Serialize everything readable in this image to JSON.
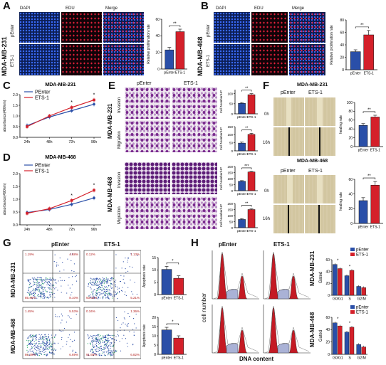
{
  "panels": {
    "A": {
      "letter": "A",
      "cell_line": "MDA-MB-231",
      "cols": [
        "DAPI",
        "EDU",
        "Merge"
      ],
      "rows": [
        "pEnter",
        "ETS-1"
      ],
      "sig": "**"
    },
    "B": {
      "letter": "B",
      "cell_line": "MDA-MB-468",
      "cols": [
        "DAPI",
        "EDU",
        "Merge"
      ],
      "rows": [
        "pEnter",
        "ETS-1"
      ],
      "sig": "**"
    },
    "C": {
      "letter": "C",
      "title": "MDA-MB-231",
      "legend": [
        "PEnter",
        "ETS-1"
      ]
    },
    "D": {
      "letter": "D",
      "title": "MDA-MB-468",
      "legend": [
        "PEnter",
        "ETS-1"
      ]
    },
    "E": {
      "letter": "E",
      "cols": [
        "pEnter",
        "ETS-1"
      ],
      "lines": [
        "MDA-MB-231",
        "MDA-MB-468"
      ],
      "rows": [
        "Invasion",
        "Migration"
      ]
    },
    "F": {
      "letter": "F",
      "titles": [
        "MDA-MB-231",
        "MDA-MB-468"
      ],
      "cols": [
        "pEnter",
        "ETS-1"
      ],
      "rows": [
        "0h",
        "16h"
      ]
    },
    "G": {
      "letter": "G",
      "cols": [
        "pEnter",
        "ETS-1"
      ],
      "lines": [
        "MDA-MB-231",
        "MDA-MB-468"
      ],
      "quad_values": [
        [
          "1.19%",
          "4.88%",
          "85.40%",
          "8.10%"
        ],
        [
          "0.12%",
          "1.13%",
          "93.53%",
          "5.21%"
        ],
        [
          "1.45%",
          "5.53%",
          "86.29%",
          "6.69%"
        ],
        [
          "0.34%",
          "1.36%",
          "91.68%",
          "6.82%"
        ]
      ]
    },
    "H": {
      "letter": "H",
      "cols": [
        "pEnter",
        "ETS-1"
      ],
      "lines": [
        "MDA-MB-231",
        "MDA-MB-468"
      ],
      "ylabel": "cell number",
      "xlabel": "DNA content"
    }
  },
  "colors": {
    "pEnter": "#2a4fa8",
    "ETS1": "#d4202a"
  },
  "chart_data": [
    {
      "id": "A-bar",
      "type": "bar",
      "categories": [
        "pEnter",
        "ETS-1"
      ],
      "values": [
        23,
        45
      ],
      "errors": [
        3,
        3
      ],
      "ylabel": "Relative proliferation rate",
      "ylim": [
        0,
        60
      ],
      "yticks": [
        0,
        20,
        40,
        60
      ],
      "sig": "**"
    },
    {
      "id": "B-bar",
      "type": "bar",
      "categories": [
        "pEnter",
        "ETS-1"
      ],
      "values": [
        29,
        56
      ],
      "errors": [
        3,
        7
      ],
      "ylabel": "Relative proliferation rate",
      "ylim": [
        0,
        80
      ],
      "yticks": [
        0,
        20,
        40,
        60,
        80
      ],
      "sig": "**"
    },
    {
      "id": "C-line",
      "type": "line",
      "title": "MDA-MB-231",
      "x": [
        "24h",
        "48h",
        "72h",
        "96h"
      ],
      "ylabel": "absorbance(490nm)",
      "ylim": [
        0,
        2.0
      ],
      "yticks": [
        "0.0",
        "0.5",
        "1.0",
        "1.5",
        "2.0"
      ],
      "series": [
        {
          "name": "PEnter",
          "values": [
            0.55,
            0.95,
            1.25,
            1.55
          ]
        },
        {
          "name": "ETS-1",
          "values": [
            0.5,
            1.0,
            1.4,
            1.75
          ]
        }
      ],
      "sig_at": [
        "*",
        "*"
      ]
    },
    {
      "id": "D-line",
      "type": "line",
      "title": "MDA-MB-468",
      "x": [
        "24h",
        "48h",
        "72h",
        "96h"
      ],
      "ylabel": "absorbance(490nm)",
      "ylim": [
        0,
        2.0
      ],
      "yticks": [
        "0.0",
        "0.5",
        "1.0",
        "1.5",
        "2.0"
      ],
      "series": [
        {
          "name": "PEnter",
          "values": [
            0.48,
            0.6,
            0.8,
            1.05
          ]
        },
        {
          "name": "ETS-1",
          "values": [
            0.45,
            0.63,
            0.95,
            1.35
          ]
        }
      ],
      "sig_at": [
        "*",
        "*"
      ]
    },
    {
      "id": "E-231-inv",
      "type": "bar",
      "categories": [
        "pEnter",
        "ETS-1"
      ],
      "values": [
        52,
        95
      ],
      "errors": [
        4,
        5
      ],
      "ylabel": "Cell Number/HP",
      "ylim": [
        0,
        120
      ],
      "yticks": [
        0,
        50,
        100
      ],
      "sig": "**"
    },
    {
      "id": "E-231-mig",
      "type": "bar",
      "categories": [
        "pEnter",
        "ETS-1"
      ],
      "values": [
        48,
        102
      ],
      "errors": [
        6,
        6
      ],
      "ylabel": "Cell Number/HP",
      "ylim": [
        0,
        150
      ],
      "yticks": [
        0,
        50,
        100,
        150
      ],
      "sig": "**"
    },
    {
      "id": "E-468-inv",
      "type": "bar",
      "categories": [
        "pEnter",
        "ETS-1"
      ],
      "values": [
        78,
        155
      ],
      "errors": [
        5,
        4
      ],
      "ylabel": "Cell Number/HP",
      "ylim": [
        0,
        200
      ],
      "yticks": [
        0,
        50,
        100,
        150,
        200
      ],
      "sig": "***"
    },
    {
      "id": "E-468-mig",
      "type": "bar",
      "categories": [
        "pEnter",
        "ETS-1"
      ],
      "values": [
        68,
        150
      ],
      "errors": [
        6,
        6
      ],
      "ylabel": "Cell Number/HP",
      "ylim": [
        0,
        200
      ],
      "yticks": [
        0,
        50,
        100,
        150,
        200
      ],
      "sig": "**"
    },
    {
      "id": "F-231",
      "type": "bar",
      "categories": [
        "pEnter",
        "ETS-1"
      ],
      "values": [
        48,
        67
      ],
      "errors": [
        4,
        4
      ],
      "ylabel": "healing rate",
      "ylim": [
        0,
        100
      ],
      "yticks": [
        0,
        20,
        40,
        60,
        80,
        100
      ],
      "sig": "**"
    },
    {
      "id": "F-468",
      "type": "bar",
      "categories": [
        "pEnter",
        "ETS-1"
      ],
      "values": [
        31,
        52
      ],
      "errors": [
        4,
        5
      ],
      "ylabel": "healing rate",
      "ylim": [
        0,
        60
      ],
      "yticks": [
        0,
        20,
        40,
        60
      ],
      "sig": "**"
    },
    {
      "id": "G-231",
      "type": "bar",
      "categories": [
        "pEnter",
        "ETS-1"
      ],
      "values": [
        10.2,
        6.6
      ],
      "errors": [
        1.2,
        1.0
      ],
      "ylabel": "Apoptosis rate",
      "ylim": [
        0,
        15
      ],
      "yticks": [
        0,
        5,
        10,
        15
      ],
      "sig": "*"
    },
    {
      "id": "G-468",
      "type": "bar",
      "categories": [
        "pEnter",
        "ETS-1"
      ],
      "values": [
        13.2,
        8.8
      ],
      "errors": [
        1.4,
        1.2
      ],
      "ylabel": "Apoptosis rate",
      "ylim": [
        0,
        20
      ],
      "yticks": [
        0,
        5,
        10,
        15,
        20
      ],
      "sig": "*"
    },
    {
      "id": "H-231",
      "type": "bar",
      "categories": [
        "G0/G1",
        "S",
        "G2/M"
      ],
      "ylabel": "Gated",
      "ylim": [
        0,
        60
      ],
      "yticks": [
        0,
        20,
        40,
        60
      ],
      "series": [
        {
          "name": "pEnter",
          "values": [
            52,
            33,
            15
          ],
          "errors": [
            2,
            2,
            2
          ]
        },
        {
          "name": "ETS-1",
          "values": [
            45,
            42,
            13
          ],
          "errors": [
            2,
            2,
            2
          ]
        }
      ],
      "sig": [
        "*",
        "*"
      ]
    },
    {
      "id": "H-468",
      "type": "bar",
      "categories": [
        "G0/G1",
        "S",
        "G2/M"
      ],
      "ylabel": "Gated",
      "ylim": [
        0,
        60
      ],
      "yticks": [
        0,
        20,
        40,
        60
      ],
      "series": [
        {
          "name": "pEnter",
          "values": [
            51,
            36,
            16
          ],
          "errors": [
            2,
            2,
            2
          ]
        },
        {
          "name": "ETS-1",
          "values": [
            46,
            44,
            12
          ],
          "errors": [
            2,
            2,
            2
          ]
        }
      ],
      "sig": [
        "*",
        "*"
      ]
    }
  ]
}
